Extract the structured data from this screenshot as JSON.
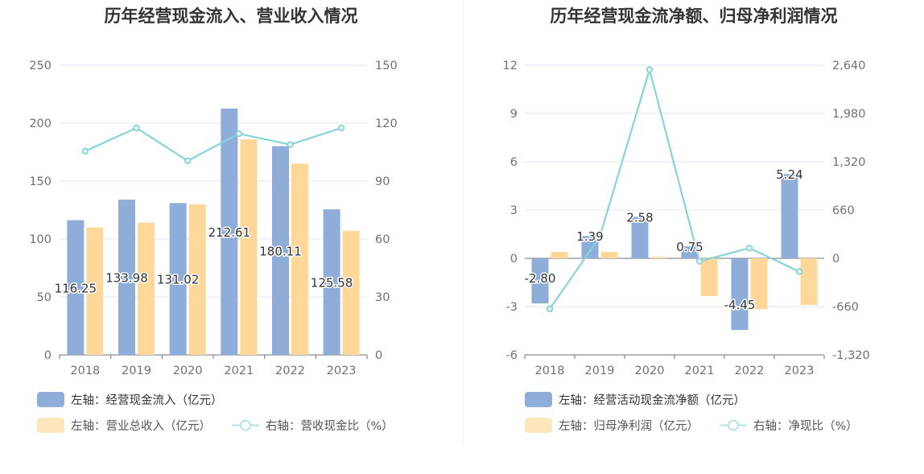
{
  "chart_data": [
    {
      "type": "bar",
      "title": "历年经营现金流入、营业收入情况",
      "categories": [
        "2018",
        "2019",
        "2020",
        "2021",
        "2022",
        "2023"
      ],
      "left_axis": {
        "min": 0,
        "max": 250,
        "ticks": [
          "0",
          "50",
          "100",
          "150",
          "200",
          "250"
        ]
      },
      "right_axis": {
        "min": 0,
        "max": 150,
        "ticks": [
          "0",
          "30",
          "60",
          "90",
          "120",
          "150"
        ]
      },
      "series": [
        {
          "name": "左轴：经营现金流入（亿元）",
          "type": "bar",
          "axis": "left",
          "color": "#8eadd9",
          "values": [
            116.25,
            133.98,
            131.02,
            212.61,
            180.11,
            125.58
          ],
          "labels": [
            "116.25",
            "133.98",
            "131.02",
            "212.61",
            "180.11",
            "125.58"
          ]
        },
        {
          "name": "左轴：营业总收入（亿元）",
          "type": "bar",
          "axis": "left",
          "color": "#ffd899",
          "values": [
            110,
            114,
            130,
            186,
            165,
            107
          ]
        },
        {
          "name": "右轴：营收现金比（%）",
          "type": "line",
          "axis": "right",
          "color": "#86d3d9",
          "values": [
            105.5,
            117.5,
            100.5,
            114.5,
            108.9,
            117.5
          ]
        }
      ],
      "grid": true
    },
    {
      "type": "bar",
      "title": "历年经营现金流净额、归母净利润情况",
      "categories": [
        "2018",
        "2019",
        "2020",
        "2021",
        "2022",
        "2023"
      ],
      "left_axis": {
        "min": -6,
        "max": 12,
        "ticks": [
          "-6",
          "-3",
          "0",
          "3",
          "6",
          "9",
          "12"
        ]
      },
      "right_axis": {
        "min": -1320,
        "max": 2640,
        "ticks": [
          "-1,320",
          "-660",
          "0",
          "660",
          "1,320",
          "1,980",
          "2,640"
        ]
      },
      "series": [
        {
          "name": "左轴：经营活动现金流净额（亿元）",
          "type": "bar",
          "axis": "left",
          "color": "#8eadd9",
          "values": [
            -2.8,
            1.39,
            2.58,
            0.75,
            -4.45,
            5.24
          ],
          "labels": [
            "-2.80",
            "1.39",
            "2.58",
            "0.75",
            "-4.45",
            "5.24"
          ]
        },
        {
          "name": "左轴：归母净利润（亿元）",
          "type": "bar",
          "axis": "left",
          "color": "#ffd899",
          "values": [
            0.4,
            0.4,
            0.08,
            -2.35,
            -3.15,
            -2.9
          ]
        },
        {
          "name": "右轴：净现比（%）",
          "type": "line",
          "axis": "right",
          "color": "#86d3d9",
          "values": [
            -690,
            290,
            2580,
            -40,
            140,
            -180
          ]
        }
      ],
      "grid": true
    }
  ]
}
